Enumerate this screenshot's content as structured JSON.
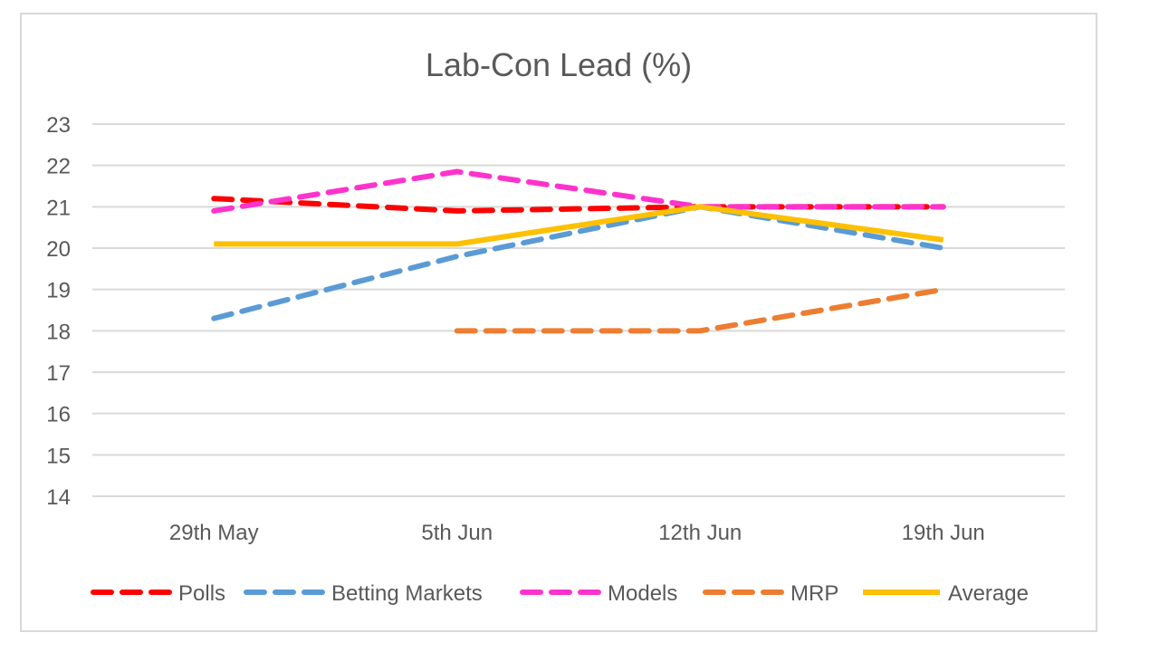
{
  "chart_data": {
    "type": "line",
    "title": "Lab-Con Lead (%)",
    "xlabel": "",
    "ylabel": "",
    "categories": [
      "29th May",
      "5th Jun",
      "12th Jun",
      "19th Jun"
    ],
    "ylim": [
      14,
      23
    ],
    "yticks": [
      "14",
      "15",
      "16",
      "17",
      "18",
      "19",
      "20",
      "21",
      "22",
      "23"
    ],
    "grid": true,
    "legend_position": "bottom",
    "series": [
      {
        "name": "Polls",
        "values": [
          21.2,
          20.9,
          21.0,
          21.0
        ],
        "color": "#ff0000",
        "dashed": true
      },
      {
        "name": "Betting Markets",
        "values": [
          18.3,
          19.8,
          21.0,
          20.0
        ],
        "color": "#5b9bd5",
        "dashed": true
      },
      {
        "name": "Models",
        "values": [
          20.9,
          21.85,
          21.0,
          21.0
        ],
        "color": "#ff33cc",
        "dashed": true
      },
      {
        "name": "MRP",
        "values": [
          null,
          18.0,
          18.0,
          19.0
        ],
        "color": "#ed7d31",
        "dashed": true
      },
      {
        "name": "Average",
        "values": [
          20.1,
          20.1,
          21.0,
          20.2
        ],
        "color": "#ffc000",
        "dashed": false
      }
    ]
  }
}
